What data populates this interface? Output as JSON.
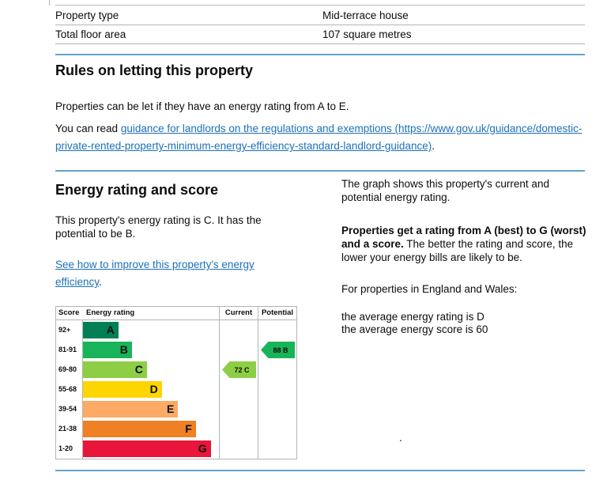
{
  "page": {
    "background": "#ffffff",
    "text_color": "#0b0c0c",
    "link_color": "#1d70b8",
    "border_color": "#b1b4b6",
    "divider_color": "#63a3cc"
  },
  "property_table": {
    "rows": [
      {
        "label": "Property type",
        "value": "Mid-terrace house"
      },
      {
        "label": "Total floor area",
        "value": "107 square metres"
      }
    ]
  },
  "rules_section": {
    "heading": "Rules on letting this property",
    "intro": "Properties can be let if they have an energy rating from A to E.",
    "read_prefix": "You can read ",
    "link_text": "guidance for landlords on the regulations and exemptions (https://www.gov.uk/guidance/domestic-private-rented-property-minimum-energy-efficiency-standard-landlord-guidance)",
    "read_suffix": "."
  },
  "energy_section": {
    "heading": "Energy rating and score",
    "summary": "This property's energy rating is C. It has the potential to be B.",
    "improve_link": "See how to improve this property's energy efficiency",
    "improve_suffix": "."
  },
  "graph_notes": {
    "intro": "The graph shows this property's current and potential energy rating.",
    "rating_bold": "Properties get a rating from A (best) to G (worst) and a score.",
    "rating_rest": " The better the rating and score, the lower your energy bills are likely to be.",
    "region_line": "For properties in England and Wales:",
    "average_rating": "the average energy rating is D",
    "average_score": "the average energy score is 60",
    "stray_mark": "."
  },
  "chart_data": {
    "type": "epc-rating-bands",
    "headers": {
      "score": "Score",
      "rating": "Energy rating",
      "current": "Current",
      "potential": "Potential"
    },
    "bands": [
      {
        "score": "92+",
        "letter": "A",
        "color": "#008054",
        "width_pct": 26
      },
      {
        "score": "81-91",
        "letter": "B",
        "color": "#19b459",
        "width_pct": 36
      },
      {
        "score": "69-80",
        "letter": "C",
        "color": "#8dce46",
        "width_pct": 47
      },
      {
        "score": "55-68",
        "letter": "D",
        "color": "#ffd500",
        "width_pct": 58
      },
      {
        "score": "39-54",
        "letter": "E",
        "color": "#fcaa65",
        "width_pct": 70
      },
      {
        "score": "21-38",
        "letter": "F",
        "color": "#ef8023",
        "width_pct": 83
      },
      {
        "score": "1-20",
        "letter": "G",
        "color": "#e9153b",
        "width_pct": 94
      }
    ],
    "current": {
      "score": 72,
      "letter": "C",
      "label": "72 C",
      "band_index": 2,
      "color": "#8dce46"
    },
    "potential": {
      "score": 88,
      "letter": "B",
      "label": "88 B",
      "band_index": 1,
      "color": "#19b459"
    }
  }
}
